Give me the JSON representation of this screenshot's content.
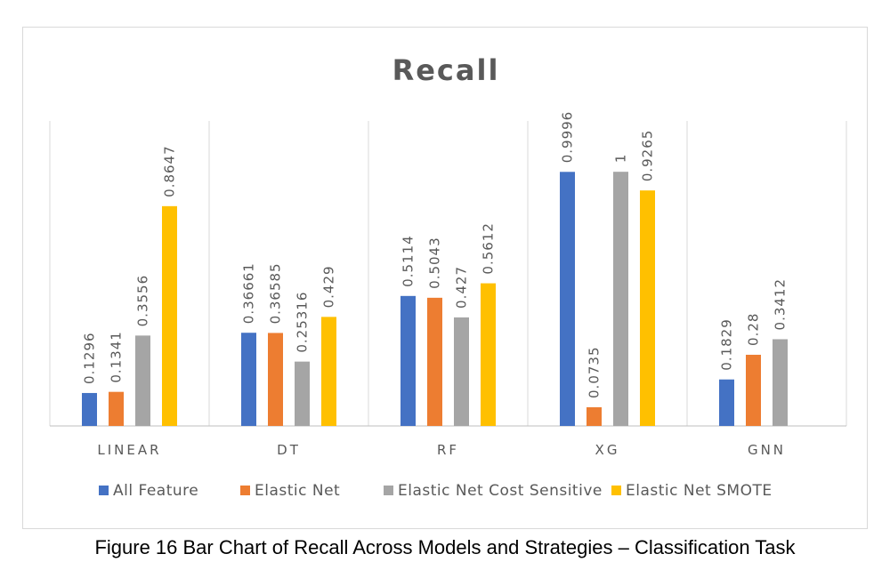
{
  "caption": "Figure 16 Bar Chart of Recall Across Models and Strategies – Classification Task",
  "chart_data": {
    "type": "bar",
    "title": "Recall",
    "xlabel": "",
    "ylabel": "",
    "ylim": [
      0,
      1.2
    ],
    "grid": false,
    "legend_position": "bottom",
    "categories": [
      "LINEAR",
      "DT",
      "RF",
      "XG",
      "GNN"
    ],
    "series": [
      {
        "name": "All Feature",
        "color": "#4472c4",
        "values": [
          0.1296,
          0.36661,
          0.5114,
          0.9996,
          0.1829
        ],
        "labels": [
          "0.1296",
          "0.36661",
          "0.5114",
          "0.9996",
          "0.1829"
        ]
      },
      {
        "name": "Elastic Net",
        "color": "#ed7d31",
        "values": [
          0.1341,
          0.36585,
          0.5043,
          0.0735,
          0.28
        ],
        "labels": [
          "0.1341",
          "0.36585",
          "0.5043",
          "0.0735",
          "0.28"
        ]
      },
      {
        "name": "Elastic Net Cost Sensitive",
        "color": "#a5a5a5",
        "values": [
          0.3556,
          0.25316,
          0.427,
          1,
          0.3412
        ],
        "labels": [
          "0.3556",
          "0.25316",
          "0.427",
          "1",
          "0.3412"
        ]
      },
      {
        "name": "Elastic Net SMOTE",
        "color": "#ffc000",
        "values": [
          0.8647,
          0.429,
          0.5612,
          0.9265,
          null
        ],
        "labels": [
          "0.8647",
          "0.429",
          "0.5612",
          "0.9265",
          ""
        ]
      }
    ]
  }
}
